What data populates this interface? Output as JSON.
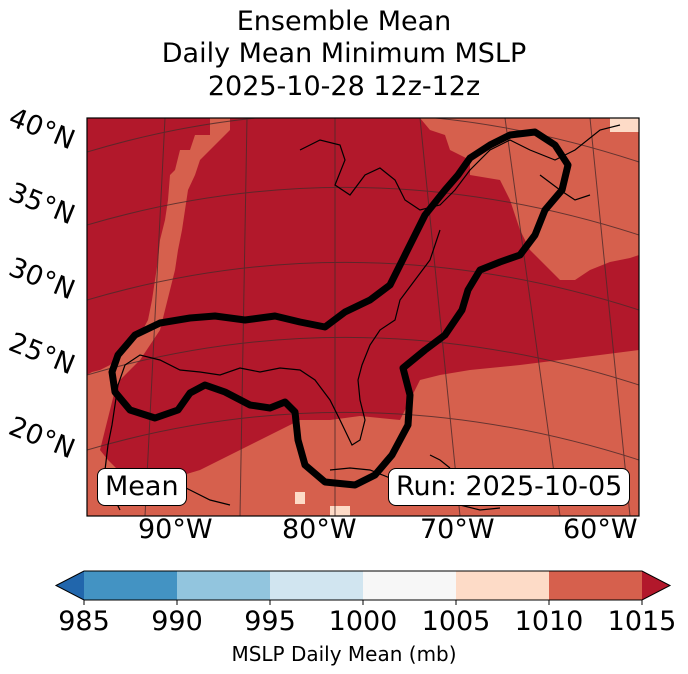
{
  "chart_data": {
    "type": "heatmap",
    "title_lines": [
      "Ensemble Mean",
      "Daily Mean Minimum MSLP",
      "2025-10-28 12z-12z"
    ],
    "lat_labels": [
      "40°N",
      "35°N",
      "30°N",
      "25°N",
      "20°N"
    ],
    "lon_labels": [
      "90°W",
      "80°W",
      "70°W",
      "60°W"
    ],
    "left_badge": "Mean",
    "right_badge": "Run: 2025-10-05",
    "colorbar": {
      "label": "MSLP Daily Mean (mb)",
      "ticks": [
        "985",
        "990",
        "995",
        "1000",
        "1005",
        "1010",
        "1015"
      ],
      "bins": [
        {
          "range": [
            980,
            985
          ],
          "color": "#2166ac"
        },
        {
          "range": [
            985,
            990
          ],
          "color": "#4393c3"
        },
        {
          "range": [
            990,
            995
          ],
          "color": "#92c5de"
        },
        {
          "range": [
            995,
            1000
          ],
          "color": "#d1e5f0"
        },
        {
          "range": [
            1000,
            1005
          ],
          "color": "#f7f7f7"
        },
        {
          "range": [
            1005,
            1010
          ],
          "color": "#fddbc7"
        },
        {
          "range": [
            1010,
            1015
          ],
          "color": "#d6604d"
        },
        {
          "range": [
            1015,
            1020
          ],
          "color": "#b2182b"
        }
      ],
      "extend": "both"
    },
    "field_regions": [
      {
        "name": "high-pressure-core",
        "range": "1015+",
        "color": "#b2182b"
      },
      {
        "name": "surrounding-field",
        "range": "1010-1015",
        "color": "#d6604d"
      },
      {
        "name": "edge-patches",
        "range": "1005-1010",
        "color": "#fddbc7"
      }
    ],
    "contour": {
      "color": "#000000",
      "description": "thick black outline of ensemble region"
    }
  }
}
